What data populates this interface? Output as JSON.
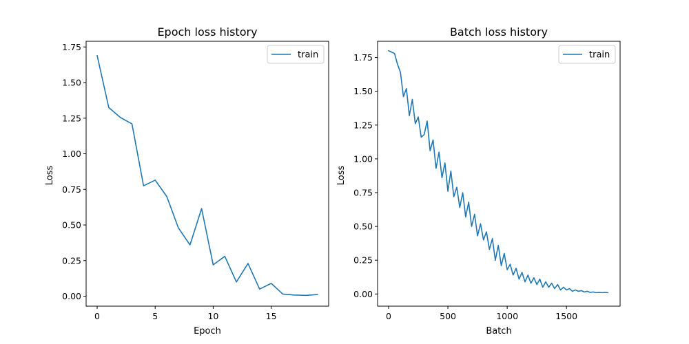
{
  "chart_data": [
    {
      "type": "line",
      "title": "Epoch loss history",
      "xlabel": "Epoch",
      "ylabel": "Loss",
      "xlim": [
        -0.95,
        19.95
      ],
      "ylim": [
        -0.07,
        1.79
      ],
      "xticks": [
        0,
        5,
        10,
        15
      ],
      "xtick_labels": [
        "0",
        "5",
        "10",
        "15"
      ],
      "yticks": [
        0,
        0.25,
        0.5,
        0.75,
        1.0,
        1.25,
        1.5,
        1.75
      ],
      "ytick_labels": [
        "0.00",
        "0.25",
        "0.50",
        "0.75",
        "1.00",
        "1.25",
        "1.50",
        "1.75"
      ],
      "grid": false,
      "legend_position": "top-right",
      "series": [
        {
          "name": "train",
          "color": "#1f77b4",
          "x": [
            0,
            1,
            2,
            3,
            4,
            5,
            6,
            7,
            8,
            9,
            10,
            11,
            12,
            13,
            14,
            15,
            16,
            17,
            18,
            19
          ],
          "values": [
            1.69,
            1.325,
            1.255,
            1.21,
            0.775,
            0.815,
            0.7,
            0.48,
            0.36,
            0.615,
            0.22,
            0.28,
            0.1,
            0.23,
            0.05,
            0.09,
            0.015,
            0.008,
            0.006,
            0.012
          ]
        }
      ]
    },
    {
      "type": "line",
      "title": "Batch loss history",
      "xlabel": "Batch",
      "ylabel": "Loss",
      "xlim": [
        -93,
        1952
      ],
      "ylim": [
        -0.09,
        1.87
      ],
      "xticks": [
        0,
        500,
        1000,
        1500
      ],
      "xtick_labels": [
        "0",
        "500",
        "1000",
        "1500"
      ],
      "yticks": [
        0,
        0.25,
        0.5,
        0.75,
        1.0,
        1.25,
        1.5,
        1.75
      ],
      "ytick_labels": [
        "0.00",
        "0.25",
        "0.50",
        "0.75",
        "1.00",
        "1.25",
        "1.50",
        "1.75"
      ],
      "grid": false,
      "legend_position": "top-right",
      "series": [
        {
          "name": "train",
          "color": "#1f77b4",
          "x": [
            0,
            25,
            50,
            75,
            100,
            125,
            150,
            175,
            200,
            225,
            250,
            275,
            300,
            325,
            350,
            375,
            400,
            425,
            450,
            475,
            500,
            525,
            550,
            575,
            600,
            625,
            650,
            675,
            700,
            725,
            750,
            775,
            800,
            825,
            850,
            875,
            900,
            925,
            950,
            975,
            1000,
            1025,
            1050,
            1075,
            1100,
            1125,
            1150,
            1175,
            1200,
            1225,
            1250,
            1275,
            1300,
            1325,
            1350,
            1375,
            1400,
            1425,
            1450,
            1475,
            1500,
            1525,
            1550,
            1575,
            1600,
            1625,
            1650,
            1675,
            1700,
            1725,
            1750,
            1775,
            1800,
            1825,
            1850
          ],
          "values": [
            1.8,
            1.79,
            1.78,
            1.7,
            1.64,
            1.46,
            1.52,
            1.32,
            1.44,
            1.26,
            1.31,
            1.16,
            1.18,
            1.28,
            1.06,
            1.14,
            0.93,
            1.05,
            0.86,
            0.97,
            0.76,
            0.91,
            0.72,
            0.79,
            0.64,
            0.75,
            0.57,
            0.68,
            0.5,
            0.59,
            0.43,
            0.52,
            0.4,
            0.46,
            0.33,
            0.41,
            0.25,
            0.36,
            0.21,
            0.3,
            0.18,
            0.22,
            0.14,
            0.19,
            0.11,
            0.16,
            0.09,
            0.14,
            0.08,
            0.12,
            0.07,
            0.11,
            0.05,
            0.09,
            0.05,
            0.08,
            0.04,
            0.07,
            0.03,
            0.05,
            0.03,
            0.04,
            0.02,
            0.03,
            0.02,
            0.025,
            0.015,
            0.02,
            0.012,
            0.015,
            0.01,
            0.012,
            0.01,
            0.012,
            0.01
          ]
        }
      ]
    }
  ]
}
